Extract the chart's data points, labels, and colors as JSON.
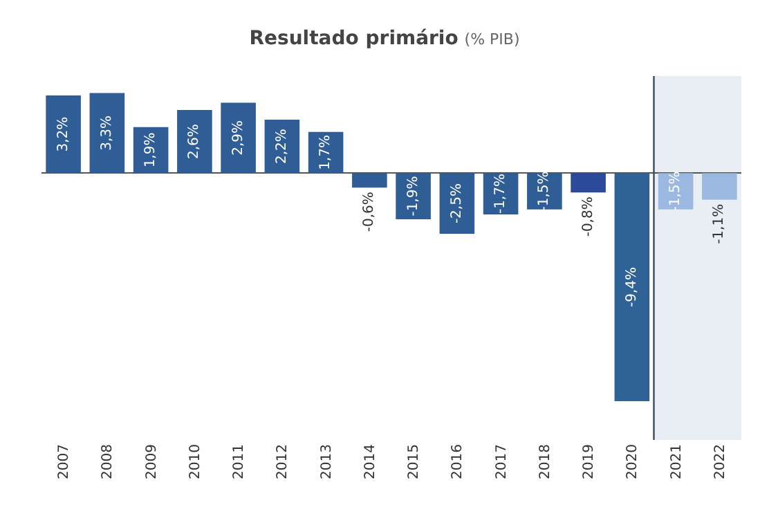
{
  "chart_data": {
    "type": "bar",
    "title": "Resultado primário",
    "subtitle": "(% PIB)",
    "categories": [
      "2007",
      "2008",
      "2009",
      "2010",
      "2011",
      "2012",
      "2013",
      "2014",
      "2015",
      "2016",
      "2017",
      "2018",
      "2019",
      "2020",
      "2021",
      "2022"
    ],
    "values": [
      3.2,
      3.3,
      1.9,
      2.6,
      2.9,
      2.2,
      1.7,
      -0.6,
      -1.9,
      -2.5,
      -1.7,
      -1.5,
      -0.8,
      -9.4,
      -1.5,
      -1.1
    ],
    "value_labels": [
      "3,2%",
      "3,3%",
      "1,9%",
      "2,6%",
      "2,9%",
      "2,2%",
      "1,7%",
      "-0,6%",
      "-1,9%",
      "-2,5%",
      "-1,7%",
      "-1,5%",
      "-0,8%",
      "-9,4%",
      "-1,5%",
      "-1,1%"
    ],
    "colors": [
      "#2f5e97",
      "#2f5e97",
      "#2f5e97",
      "#2f5e97",
      "#2f5e97",
      "#2f5e97",
      "#2f5e97",
      "#2f5e97",
      "#2f5e97",
      "#2f5e97",
      "#2f5e97",
      "#2f5e97",
      "#2c4a9a",
      "#2f6397",
      "#9bb8e0",
      "#9bb8e0"
    ],
    "ylim": [
      -11,
      4
    ],
    "tick_labels": "x",
    "bands": [
      {
        "axis": "x",
        "from": "2021",
        "to": "2022",
        "color": "#e9eef5"
      }
    ]
  }
}
